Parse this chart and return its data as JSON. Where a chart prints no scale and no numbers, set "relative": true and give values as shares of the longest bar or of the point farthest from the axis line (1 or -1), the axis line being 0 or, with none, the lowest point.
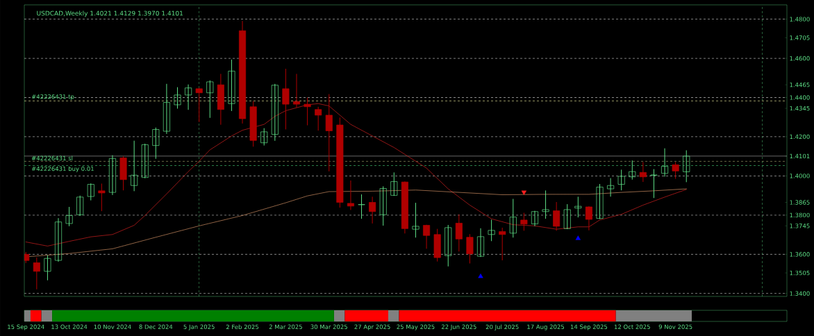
{
  "chart_data": [
    {
      "type": "candlestick",
      "title": "USDCAD,Weekly  1.4021 1.4129 1.3970 1.4101",
      "x": [
        "2024-09-15",
        "2024-09-22",
        "2024-09-29",
        "2024-10-06",
        "2024-10-13",
        "2024-10-20",
        "2024-10-27",
        "2024-11-03",
        "2024-11-10",
        "2024-11-17",
        "2024-11-24",
        "2024-12-01",
        "2024-12-08",
        "2024-12-15",
        "2024-12-22",
        "2024-12-29",
        "2025-01-05",
        "2025-01-12",
        "2025-01-19",
        "2025-01-26",
        "2025-02-02",
        "2025-02-09",
        "2025-02-16",
        "2025-02-23",
        "2025-03-02",
        "2025-03-09",
        "2025-03-16",
        "2025-03-23",
        "2025-03-30",
        "2025-04-06",
        "2025-04-13",
        "2025-04-20",
        "2025-04-27",
        "2025-05-04",
        "2025-05-11",
        "2025-05-18",
        "2025-05-25",
        "2025-06-01",
        "2025-06-08",
        "2025-06-15",
        "2025-06-22",
        "2025-06-29",
        "2025-07-06",
        "2025-07-13",
        "2025-07-20",
        "2025-07-27",
        "2025-08-03",
        "2025-08-10",
        "2025-08-17",
        "2025-08-24",
        "2025-08-31",
        "2025-09-07",
        "2025-09-14",
        "2025-09-21",
        "2025-09-28",
        "2025-10-05",
        "2025-10-12",
        "2025-10-19",
        "2025-10-26",
        "2025-11-02",
        "2025-11-09",
        "2025-11-16"
      ],
      "ohlc": [
        [
          1.36,
          1.361,
          1.3557,
          1.3568
        ],
        [
          1.3557,
          1.3582,
          1.3423,
          1.3513
        ],
        [
          1.3513,
          1.3593,
          1.3469,
          1.3579
        ],
        [
          1.3569,
          1.3783,
          1.3564,
          1.3765
        ],
        [
          1.3757,
          1.384,
          1.3745,
          1.3798
        ],
        [
          1.3802,
          1.3898,
          1.3798,
          1.3892
        ],
        [
          1.3895,
          1.396,
          1.3877,
          1.3957
        ],
        [
          1.3924,
          1.3959,
          1.3822,
          1.3913
        ],
        [
          1.3916,
          1.4104,
          1.3904,
          1.4089
        ],
        [
          1.4092,
          1.4098,
          1.3928,
          1.3981
        ],
        [
          1.3951,
          1.4178,
          1.3924,
          1.4004
        ],
        [
          1.3992,
          1.4163,
          1.399,
          1.4159
        ],
        [
          1.4155,
          1.4245,
          1.4089,
          1.4237
        ],
        [
          1.4228,
          1.4468,
          1.4216,
          1.4375
        ],
        [
          1.4363,
          1.4451,
          1.4345,
          1.4413
        ],
        [
          1.4413,
          1.4465,
          1.4339,
          1.4449
        ],
        [
          1.4445,
          1.4447,
          1.4277,
          1.4424
        ],
        [
          1.4424,
          1.4486,
          1.4298,
          1.448
        ],
        [
          1.4465,
          1.4519,
          1.4263,
          1.4339
        ],
        [
          1.4369,
          1.4592,
          1.4333,
          1.4535
        ],
        [
          1.4741,
          1.4789,
          1.4269,
          1.4292
        ],
        [
          1.4353,
          1.438,
          1.4151,
          1.4181
        ],
        [
          1.4169,
          1.4242,
          1.4157,
          1.4225
        ],
        [
          1.4212,
          1.4468,
          1.4181,
          1.4463
        ],
        [
          1.4445,
          1.4545,
          1.4239,
          1.4366
        ],
        [
          1.438,
          1.4519,
          1.4351,
          1.4366
        ],
        [
          1.4366,
          1.4398,
          1.426,
          1.4353
        ],
        [
          1.4339,
          1.4351,
          1.4233,
          1.431
        ],
        [
          1.431,
          1.4416,
          1.4025,
          1.423
        ],
        [
          1.426,
          1.4296,
          1.384,
          1.3865
        ],
        [
          1.386,
          1.3975,
          1.3828,
          1.3846
        ],
        [
          1.3853,
          1.3904,
          1.3783,
          1.3854
        ],
        [
          1.3865,
          1.3892,
          1.3759,
          1.3818
        ],
        [
          1.3802,
          1.3945,
          1.3748,
          1.3936
        ],
        [
          1.3901,
          1.4016,
          1.39,
          1.3971
        ],
        [
          1.3969,
          1.397,
          1.3708,
          1.3731
        ],
        [
          1.3728,
          1.3861,
          1.3687,
          1.3743
        ],
        [
          1.3748,
          1.3749,
          1.363,
          1.3696
        ],
        [
          1.3701,
          1.3728,
          1.3565,
          1.3583
        ],
        [
          1.3593,
          1.3748,
          1.354,
          1.3736
        ],
        [
          1.3759,
          1.3802,
          1.3616,
          1.3678
        ],
        [
          1.3687,
          1.3701,
          1.3555,
          1.3602
        ],
        [
          1.359,
          1.3731,
          1.3588,
          1.369
        ],
        [
          1.3701,
          1.3775,
          1.3669,
          1.3722
        ],
        [
          1.3716,
          1.3734,
          1.3571,
          1.3701
        ],
        [
          1.3708,
          1.3881,
          1.3687,
          1.379
        ],
        [
          1.3775,
          1.381,
          1.3722,
          1.3754
        ],
        [
          1.3755,
          1.382,
          1.3745,
          1.3818
        ],
        [
          1.3818,
          1.3924,
          1.3783,
          1.3828
        ],
        [
          1.3822,
          1.3865,
          1.3722,
          1.3743
        ],
        [
          1.3731,
          1.3854,
          1.373,
          1.3828
        ],
        [
          1.3836,
          1.3892,
          1.379,
          1.3845
        ],
        [
          1.3842,
          1.3843,
          1.3724,
          1.3778
        ],
        [
          1.3783,
          1.3957,
          1.3782,
          1.3943
        ],
        [
          1.3934,
          1.3987,
          1.3896,
          1.3951
        ],
        [
          1.3957,
          1.403,
          1.3928,
          1.3998
        ],
        [
          1.3995,
          1.4077,
          1.3983,
          1.4022
        ],
        [
          1.4018,
          1.4069,
          1.3971,
          1.3995
        ],
        [
          1.4003,
          1.4033,
          1.3889,
          1.4005
        ],
        [
          1.4013,
          1.4139,
          1.3998,
          1.4049
        ],
        [
          1.4057,
          1.4069,
          1.3987,
          1.4025
        ],
        [
          1.4021,
          1.4129,
          1.397,
          1.4101
        ]
      ],
      "colors": [
        "#b00000",
        "#b00000",
        "#5ee087",
        "#5ee087",
        "#5ee087",
        "#5ee087",
        "#5ee087",
        "#b00000",
        "#5ee087",
        "#b00000",
        "#5ee087",
        "#5ee087",
        "#5ee087",
        "#5ee087",
        "#5ee087",
        "#5ee087",
        "#b00000",
        "#5ee087",
        "#b00000",
        "#5ee087",
        "#b00000",
        "#b00000",
        "#5ee087",
        "#5ee087",
        "#b00000",
        "#b00000",
        "#b00000",
        "#b00000",
        "#b00000",
        "#b00000",
        "#b00000",
        "#5ee087",
        "#b00000",
        "#5ee087",
        "#5ee087",
        "#b00000",
        "#5ee087",
        "#b00000",
        "#b00000",
        "#5ee087",
        "#b00000",
        "#b00000",
        "#5ee087",
        "#5ee087",
        "#b00000",
        "#5ee087",
        "#b00000",
        "#5ee087",
        "#5ee087",
        "#b00000",
        "#5ee087",
        "#5ee087",
        "#b00000",
        "#5ee087",
        "#5ee087",
        "#5ee087",
        "#5ee087",
        "#b00000",
        "#5ee087",
        "#5ee087",
        "#b00000",
        "#5ee087"
      ],
      "series": [
        {
          "type": "line",
          "color": "#d02020",
          "x": [
            "2024-09-15",
            "2024-09-29",
            "2024-10-13",
            "2024-10-27",
            "2024-11-10",
            "2024-11-24",
            "2024-12-01",
            "2024-12-15",
            "2024-12-29",
            "2025-01-05",
            "2025-01-12",
            "2025-01-26",
            "2025-02-02",
            "2025-02-16",
            "2025-02-23",
            "2025-03-02",
            "2025-03-16",
            "2025-03-23",
            "2025-03-30",
            "2025-04-13",
            "2025-04-27",
            "2025-05-11",
            "2025-05-25",
            "2025-06-01",
            "2025-06-15",
            "2025-06-29",
            "2025-07-13",
            "2025-07-27",
            "2025-08-10",
            "2025-08-24",
            "2025-09-07",
            "2025-09-14",
            "2025-09-21",
            "2025-10-05",
            "2025-10-19",
            "2025-11-02",
            "2025-11-16"
          ],
          "values": [
            1.3663,
            1.3642,
            1.3666,
            1.3689,
            1.3701,
            1.3748,
            1.3798,
            1.3908,
            1.4022,
            1.4075,
            1.4133,
            1.4204,
            1.4233,
            1.4263,
            1.4304,
            1.4333,
            1.4363,
            1.4369,
            1.4357,
            1.4263,
            1.4204,
            1.4145,
            1.4075,
            1.404,
            1.3934,
            1.3851,
            1.3781,
            1.3751,
            1.3745,
            1.3728,
            1.374,
            1.374,
            1.3775,
            1.3804,
            1.3851,
            1.3892,
            1.3931
          ]
        },
        {
          "type": "line",
          "color": "#e8a070",
          "line_style": "dotted",
          "x": [
            "2024-09-15",
            "2024-10-13",
            "2024-11-10",
            "2024-12-08",
            "2025-01-05",
            "2025-02-02",
            "2025-03-02",
            "2025-03-16",
            "2025-03-30",
            "2025-04-27",
            "2025-05-25",
            "2025-06-22",
            "2025-07-20",
            "2025-08-17",
            "2025-09-14",
            "2025-10-05",
            "2025-10-26",
            "2025-11-16"
          ],
          "values": [
            1.3587,
            1.3604,
            1.3628,
            1.3687,
            1.3745,
            1.3798,
            1.3863,
            1.3898,
            1.392,
            1.3922,
            1.3928,
            1.3916,
            1.3904,
            1.3906,
            1.3906,
            1.3916,
            1.3924,
            1.3934
          ]
        },
        {
          "type": "scatter",
          "marker": "triangle",
          "color": "#0000ff",
          "x": [
            "2025-07-06",
            "2025-09-07"
          ],
          "values": [
            1.3487,
            1.3681
          ]
        },
        {
          "type": "scatter",
          "marker": "triangle",
          "color": "#ff2020",
          "x": [
            "2025-08-03"
          ],
          "values": [
            1.3917
          ]
        }
      ],
      "ref_lines": [
        {
          "axis": "y",
          "value": 1.48,
          "color": "#c8c8c8",
          "line_style": "dashed"
        },
        {
          "axis": "y",
          "value": 1.46,
          "color": "#c8c8c8",
          "line_style": "dashed"
        },
        {
          "axis": "y",
          "value": 1.44,
          "color": "#c8c8c8",
          "line_style": "dashed"
        },
        {
          "axis": "y",
          "value": 1.42,
          "color": "#c8c8c8",
          "line_style": "dashed"
        },
        {
          "axis": "y",
          "value": 1.4,
          "color": "#c8c8c8",
          "line_style": "dashed"
        },
        {
          "axis": "y",
          "value": 1.38,
          "color": "#c8c8c8",
          "line_style": "dashed"
        },
        {
          "axis": "y",
          "value": 1.36,
          "color": "#c8c8c8",
          "line_style": "dashed"
        },
        {
          "axis": "y",
          "value": 1.34,
          "color": "#c8c8c8",
          "line_style": "dashed"
        },
        {
          "axis": "x",
          "value": "2025-01-05",
          "color": "#5ee087",
          "line_style": "dashed"
        },
        {
          "axis": "x",
          "value": "2026-01-04",
          "color": "#5ee087",
          "line_style": "dashed"
        },
        {
          "axis": "y",
          "value": 1.4101,
          "color": "#a0a0a0",
          "line_style": "solid"
        },
        {
          "axis": "y",
          "value": 1.4383,
          "color": "#f0f0a0",
          "line_style": "dashed",
          "label": "#42226431 tp"
        },
        {
          "axis": "y",
          "value": 1.4075,
          "color": "#f0f0a0",
          "line_style": "dashed",
          "label": "#42226431 sl"
        },
        {
          "axis": "y",
          "value": 1.4053,
          "color": "#40c070",
          "line_style": "dashed",
          "label": "#42226431 buy 0.01"
        }
      ],
      "xlim": [
        "2024-09-14",
        "2026-01-20"
      ],
      "xticks": [
        {
          "value": "2024-09-15",
          "label": "15 Sep 2024"
        },
        {
          "value": "2024-10-13",
          "label": "13 Oct 2024"
        },
        {
          "value": "2024-11-10",
          "label": "10 Nov 2024"
        },
        {
          "value": "2024-12-08",
          "label": "8 Dec 2024"
        },
        {
          "value": "2025-01-05",
          "label": "5 Jan 2025"
        },
        {
          "value": "2025-02-02",
          "label": "2 Feb 2025"
        },
        {
          "value": "2025-03-02",
          "label": "2 Mar 2025"
        },
        {
          "value": "2025-03-30",
          "label": "30 Mar 2025"
        },
        {
          "value": "2025-04-27",
          "label": "27 Apr 2025"
        },
        {
          "value": "2025-05-25",
          "label": "25 May 2025"
        },
        {
          "value": "2025-06-22",
          "label": "22 Jun 2025"
        },
        {
          "value": "2025-07-20",
          "label": "20 Jul 2025"
        },
        {
          "value": "2025-08-17",
          "label": "17 Aug 2025"
        },
        {
          "value": "2025-09-14",
          "label": "14 Sep 2025"
        },
        {
          "value": "2025-10-12",
          "label": "12 Oct 2025"
        },
        {
          "value": "2025-11-09",
          "label": "9 Nov 2025"
        }
      ],
      "ylim": [
        1.3385,
        1.4873
      ],
      "yticks": [
        {
          "value": 1.48,
          "label": "1.4800"
        },
        1.4705,
        {
          "value": 1.46,
          "label": "1.4600"
        },
        1.4465,
        {
          "value": 1.44,
          "label": "1.4400"
        },
        1.4345,
        {
          "value": 1.42,
          "label": "1.4200"
        },
        1.4101,
        {
          "value": 1.4,
          "label": "1.4000"
        },
        1.3865,
        {
          "value": 1.38,
          "label": "1.3800"
        },
        1.3745,
        {
          "value": 1.36,
          "label": "1.3600"
        },
        1.3505,
        {
          "value": 1.34,
          "label": "1.3400"
        }
      ]
    },
    {
      "type": "bar",
      "orientation": "horizontal",
      "stacked": true,
      "relative": true,
      "categories": [
        null
      ],
      "series": [
        {
          "color": "#808080",
          "values": [
            0.0093
          ]
        },
        {
          "color": "#ff0000",
          "values": [
            0.0162
          ]
        },
        {
          "color": "#808080",
          "values": [
            0.0162
          ]
        },
        {
          "color": "#008000",
          "values": [
            0.4223
          ]
        },
        {
          "color": "#808080",
          "values": [
            0.0162
          ]
        },
        {
          "color": "#ff0000",
          "values": [
            0.065
          ]
        },
        {
          "color": "#808080",
          "values": [
            0.0162
          ]
        },
        {
          "color": "#ff0000",
          "values": [
            0.3248
          ]
        },
        {
          "color": "#808080",
          "values": [
            0.1138
          ]
        }
      ]
    }
  ]
}
